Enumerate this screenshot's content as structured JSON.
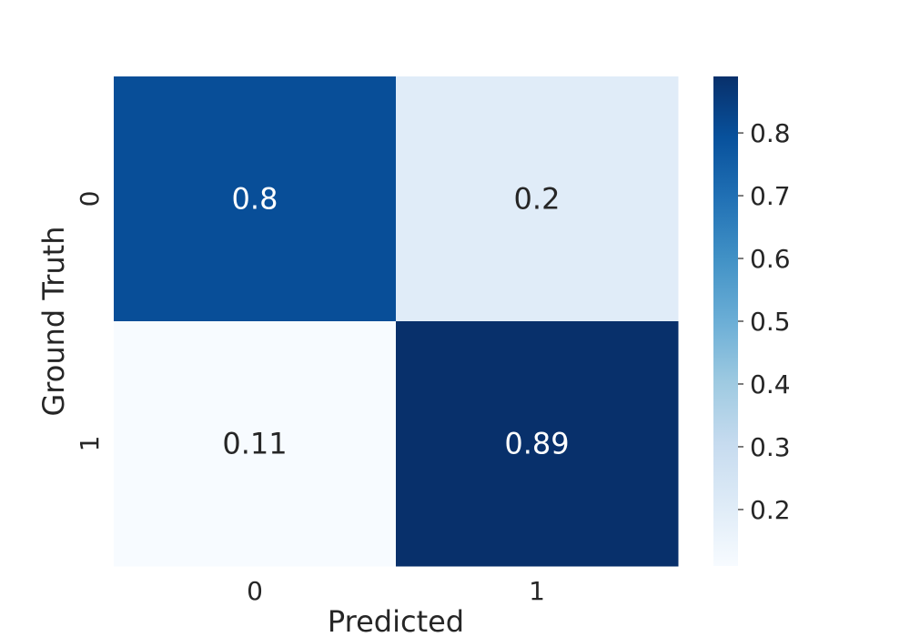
{
  "chart_data": {
    "type": "heatmap",
    "title": "",
    "xlabel": "Predicted",
    "ylabel": "Ground Truth",
    "x_categories": [
      "0",
      "1"
    ],
    "y_categories": [
      "0",
      "1"
    ],
    "values": [
      [
        0.8,
        0.2
      ],
      [
        0.11,
        0.89
      ]
    ],
    "annotations": [
      [
        "0.8",
        "0.2"
      ],
      [
        "0.11",
        "0.89"
      ]
    ],
    "colormap": "Blues",
    "colorbar": {
      "range": [
        0.11,
        0.89
      ],
      "ticks": [
        "0.2",
        "0.3",
        "0.4",
        "0.5",
        "0.6",
        "0.7",
        "0.8"
      ],
      "tick_values": [
        0.2,
        0.3,
        0.4,
        0.5,
        0.6,
        0.7,
        0.8
      ]
    },
    "grid": false,
    "colors": {
      "low": "#f7fbff",
      "high": "#08306b",
      "text_dark": "#262626",
      "text_light": "#ffffff"
    }
  }
}
